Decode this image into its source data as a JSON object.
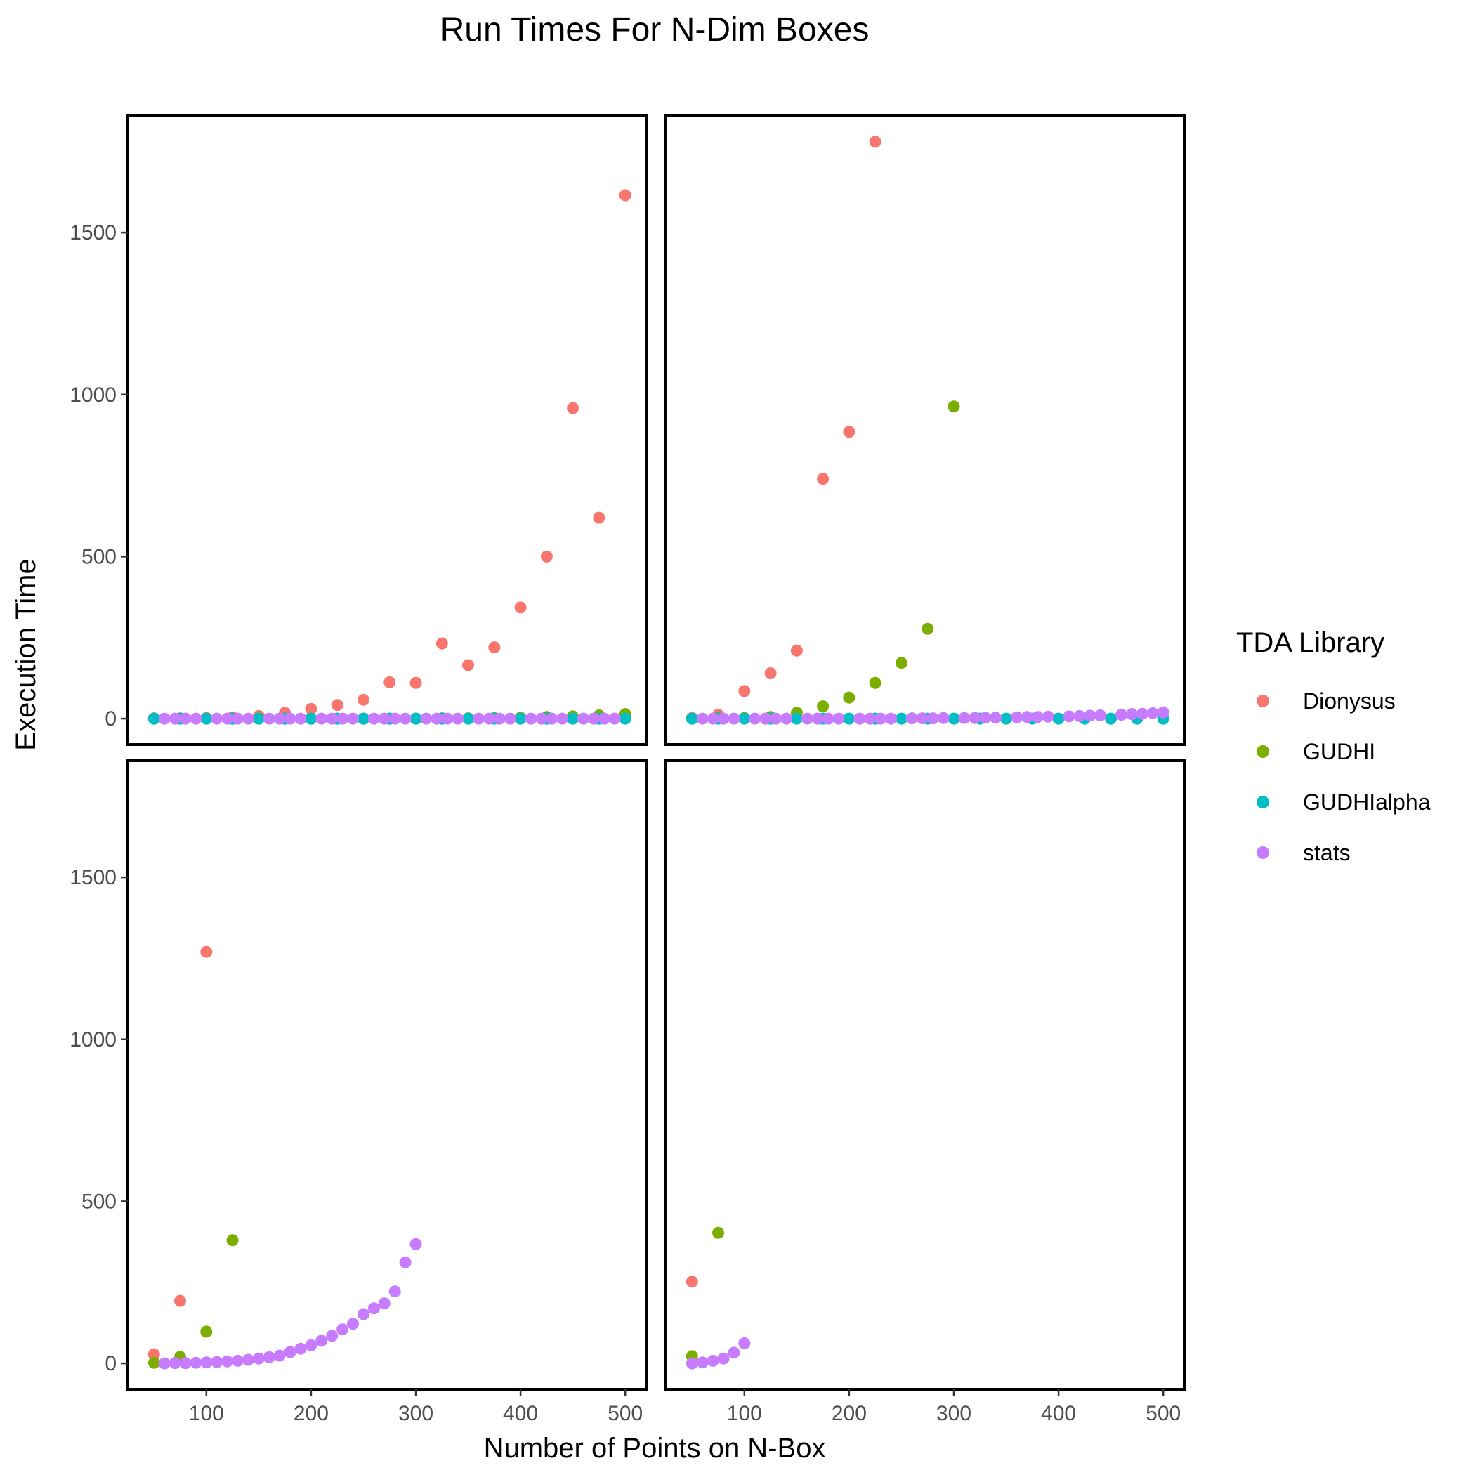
{
  "chart_data": {
    "type": "scatter",
    "title": "Run Times For N-Dim Boxes",
    "xlabel": "Number of Points on N-Box",
    "ylabel": "Execution Time",
    "xlim": [
      25,
      520
    ],
    "ylim": [
      -80,
      1860
    ],
    "x_ticks": [
      100,
      200,
      300,
      400,
      500
    ],
    "y_ticks": [
      0,
      500,
      1000,
      1500
    ],
    "grid": false,
    "legend": {
      "title": "TDA Library",
      "position": "right",
      "entries": [
        {
          "name": "Dionysus",
          "color": "#F8766D"
        },
        {
          "name": "GUDHI",
          "color": "#7CAE00"
        },
        {
          "name": "GUDHIalpha",
          "color": "#00BFC4"
        },
        {
          "name": "stats",
          "color": "#C77CFF"
        }
      ]
    },
    "panels": [
      {
        "series": [
          {
            "name": "Dionysus",
            "points": [
              [
                50,
                1
              ],
              [
                75,
                1
              ],
              [
                100,
                2
              ],
              [
                125,
                4
              ],
              [
                150,
                8
              ],
              [
                175,
                18
              ],
              [
                200,
                30
              ],
              [
                225,
                42
              ],
              [
                250,
                58
              ],
              [
                275,
                112
              ],
              [
                300,
                110
              ],
              [
                325,
                232
              ],
              [
                350,
                165
              ],
              [
                375,
                220
              ],
              [
                400,
                343
              ],
              [
                425,
                500
              ],
              [
                450,
                958
              ],
              [
                475,
                620
              ],
              [
                500,
                1615
              ]
            ]
          },
          {
            "name": "GUDHI",
            "points": [
              [
                50,
                0
              ],
              [
                75,
                0
              ],
              [
                100,
                0
              ],
              [
                125,
                0
              ],
              [
                150,
                0
              ],
              [
                175,
                0
              ],
              [
                200,
                0
              ],
              [
                225,
                0
              ],
              [
                250,
                0
              ],
              [
                275,
                0
              ],
              [
                300,
                0
              ],
              [
                325,
                1
              ],
              [
                350,
                1
              ],
              [
                375,
                2
              ],
              [
                400,
                3
              ],
              [
                425,
                5
              ],
              [
                450,
                7
              ],
              [
                475,
                10
              ],
              [
                500,
                14
              ]
            ]
          },
          {
            "name": "GUDHIalpha",
            "points": [
              [
                50,
                0
              ],
              [
                75,
                0
              ],
              [
                100,
                0
              ],
              [
                125,
                0
              ],
              [
                150,
                0
              ],
              [
                175,
                0
              ],
              [
                200,
                0
              ],
              [
                225,
                0
              ],
              [
                250,
                0
              ],
              [
                275,
                0
              ],
              [
                300,
                0
              ],
              [
                325,
                0
              ],
              [
                350,
                0
              ],
              [
                375,
                0
              ],
              [
                400,
                0
              ],
              [
                425,
                0
              ],
              [
                450,
                0
              ],
              [
                475,
                0
              ],
              [
                500,
                0
              ]
            ]
          },
          {
            "name": "stats",
            "points": [
              [
                60,
                0
              ],
              [
                70,
                0
              ],
              [
                80,
                0
              ],
              [
                90,
                0
              ],
              [
                110,
                0
              ],
              [
                120,
                0
              ],
              [
                130,
                0
              ],
              [
                140,
                0
              ],
              [
                160,
                0
              ],
              [
                170,
                0
              ],
              [
                180,
                0
              ],
              [
                190,
                0
              ],
              [
                210,
                0
              ],
              [
                220,
                0
              ],
              [
                230,
                0
              ],
              [
                240,
                0
              ],
              [
                260,
                0
              ],
              [
                270,
                0
              ],
              [
                280,
                0
              ],
              [
                290,
                0
              ],
              [
                310,
                0
              ],
              [
                320,
                0
              ],
              [
                330,
                0
              ],
              [
                340,
                0
              ],
              [
                360,
                0
              ],
              [
                370,
                0
              ],
              [
                380,
                0
              ],
              [
                390,
                0
              ],
              [
                410,
                0
              ],
              [
                420,
                0
              ],
              [
                430,
                0
              ],
              [
                440,
                0
              ],
              [
                460,
                0
              ],
              [
                470,
                0
              ],
              [
                480,
                0
              ],
              [
                490,
                0
              ]
            ]
          }
        ]
      },
      {
        "series": [
          {
            "name": "Dionysus",
            "points": [
              [
                50,
                2
              ],
              [
                75,
                12
              ],
              [
                100,
                85
              ],
              [
                125,
                140
              ],
              [
                150,
                210
              ],
              [
                175,
                740
              ],
              [
                200,
                885
              ],
              [
                225,
                1780
              ]
            ]
          },
          {
            "name": "GUDHI",
            "points": [
              [
                50,
                0
              ],
              [
                75,
                1
              ],
              [
                100,
                2
              ],
              [
                125,
                5
              ],
              [
                150,
                18
              ],
              [
                175,
                38
              ],
              [
                200,
                65
              ],
              [
                225,
                110
              ],
              [
                250,
                172
              ],
              [
                275,
                277
              ],
              [
                300,
                963
              ]
            ]
          },
          {
            "name": "GUDHIalpha",
            "points": [
              [
                50,
                0
              ],
              [
                75,
                0
              ],
              [
                100,
                0
              ],
              [
                125,
                0
              ],
              [
                150,
                0
              ],
              [
                175,
                0
              ],
              [
                200,
                0
              ],
              [
                225,
                0
              ],
              [
                250,
                0
              ],
              [
                275,
                0
              ],
              [
                300,
                0
              ],
              [
                325,
                0
              ],
              [
                350,
                0
              ],
              [
                375,
                0
              ],
              [
                400,
                0
              ],
              [
                425,
                0
              ],
              [
                450,
                0
              ],
              [
                475,
                0
              ],
              [
                500,
                0
              ]
            ]
          },
          {
            "name": "stats",
            "points": [
              [
                60,
                0
              ],
              [
                70,
                0
              ],
              [
                80,
                0
              ],
              [
                90,
                0
              ],
              [
                110,
                0
              ],
              [
                120,
                0
              ],
              [
                130,
                0
              ],
              [
                140,
                0
              ],
              [
                160,
                0
              ],
              [
                170,
                0
              ],
              [
                180,
                0
              ],
              [
                190,
                0
              ],
              [
                210,
                0
              ],
              [
                220,
                0
              ],
              [
                230,
                0
              ],
              [
                240,
                0
              ],
              [
                260,
                1
              ],
              [
                270,
                1
              ],
              [
                280,
                1
              ],
              [
                290,
                2
              ],
              [
                310,
                2
              ],
              [
                320,
                2
              ],
              [
                330,
                3
              ],
              [
                340,
                3
              ],
              [
                360,
                4
              ],
              [
                370,
                5
              ],
              [
                380,
                5
              ],
              [
                390,
                6
              ],
              [
                410,
                7
              ],
              [
                420,
                8
              ],
              [
                430,
                9
              ],
              [
                440,
                10
              ],
              [
                460,
                12
              ],
              [
                470,
                14
              ],
              [
                480,
                15
              ],
              [
                490,
                17
              ],
              [
                500,
                19
              ]
            ]
          }
        ]
      },
      {
        "series": [
          {
            "name": "Dionysus",
            "points": [
              [
                50,
                28
              ],
              [
                75,
                193
              ],
              [
                100,
                1270
              ]
            ]
          },
          {
            "name": "GUDHI",
            "points": [
              [
                50,
                2
              ],
              [
                75,
                20
              ],
              [
                100,
                98
              ],
              [
                125,
                380
              ]
            ]
          },
          {
            "name": "stats",
            "points": [
              [
                60,
                0
              ],
              [
                70,
                1
              ],
              [
                80,
                1
              ],
              [
                90,
                2
              ],
              [
                100,
                3
              ],
              [
                110,
                4
              ],
              [
                120,
                6
              ],
              [
                130,
                8
              ],
              [
                140,
                11
              ],
              [
                150,
                15
              ],
              [
                160,
                19
              ],
              [
                170,
                24
              ],
              [
                180,
                35
              ],
              [
                190,
                45
              ],
              [
                200,
                56
              ],
              [
                210,
                70
              ],
              [
                220,
                85
              ],
              [
                230,
                105
              ],
              [
                240,
                122
              ],
              [
                250,
                152
              ],
              [
                260,
                170
              ],
              [
                270,
                185
              ],
              [
                280,
                222
              ],
              [
                290,
                312
              ],
              [
                300,
                368
              ]
            ]
          }
        ]
      },
      {
        "series": [
          {
            "name": "Dionysus",
            "points": [
              [
                50,
                252
              ]
            ]
          },
          {
            "name": "GUDHI",
            "points": [
              [
                50,
                22
              ],
              [
                75,
                403
              ]
            ]
          },
          {
            "name": "stats",
            "points": [
              [
                50,
                0
              ],
              [
                60,
                3
              ],
              [
                70,
                8
              ],
              [
                80,
                15
              ],
              [
                90,
                33
              ],
              [
                100,
                62
              ]
            ]
          }
        ]
      }
    ]
  }
}
